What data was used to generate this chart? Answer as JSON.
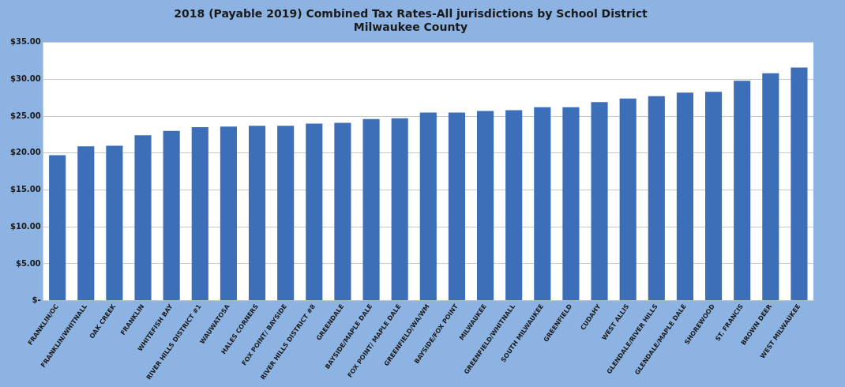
{
  "chart_data": {
    "type": "bar",
    "title": "2018 (Payable 2019) Combined Tax Rates-All jurisdictions by School District",
    "subtitle": "Milwaukee County",
    "categories": [
      "FRANKLIN/OC",
      "FRANKLIN/WHITNALL",
      "OAK CREEK",
      "FRANKLIN",
      "WHITEFISH BAY",
      "RIVER HILLS DISTRICT #1",
      "WAUWATOSA",
      "HALES CORNERS",
      "FOX POINT/ BAYSIDE",
      "RIVER HILLS DISTRICT #8",
      "GREENDALE",
      "BAYSIDE/MAPLE DALE",
      "FOX POINT/ MAPLE DALE",
      "GREENFIELD/WA/WM",
      "BAYSIDE/FOX POINT",
      "MILWAUKEE",
      "GREENFIELD/WHITNALL",
      "SOUTH MILWAUKEE",
      "GREENFIELD",
      "CUDAHY",
      "WEST ALLIS",
      "GLENDALE/RIVER HILLS",
      "GLENDALE/MAPLE DALE",
      "SHOREWOOD",
      "ST. FRANCIS",
      "BROWN DEER",
      "WEST MILWAUKEE"
    ],
    "values": [
      19.7,
      20.9,
      21.0,
      22.4,
      23.0,
      23.5,
      23.6,
      23.7,
      23.7,
      24.0,
      24.1,
      24.6,
      24.7,
      25.5,
      25.5,
      25.7,
      25.8,
      26.2,
      26.2,
      26.9,
      27.4,
      27.7,
      28.2,
      28.3,
      29.8,
      30.8,
      31.6
    ],
    "color": "#3c6fb8",
    "ylim": [
      0,
      35
    ],
    "yticks": [
      {
        "value": 0,
        "label": "$-"
      },
      {
        "value": 5,
        "label": "$5.00"
      },
      {
        "value": 10,
        "label": "$10.00"
      },
      {
        "value": 15,
        "label": "$15.00"
      },
      {
        "value": 20,
        "label": "$20.00"
      },
      {
        "value": 25,
        "label": "$25.00"
      },
      {
        "value": 30,
        "label": "$30.00"
      },
      {
        "value": 35,
        "label": "$35.00"
      }
    ],
    "grid": "y"
  }
}
